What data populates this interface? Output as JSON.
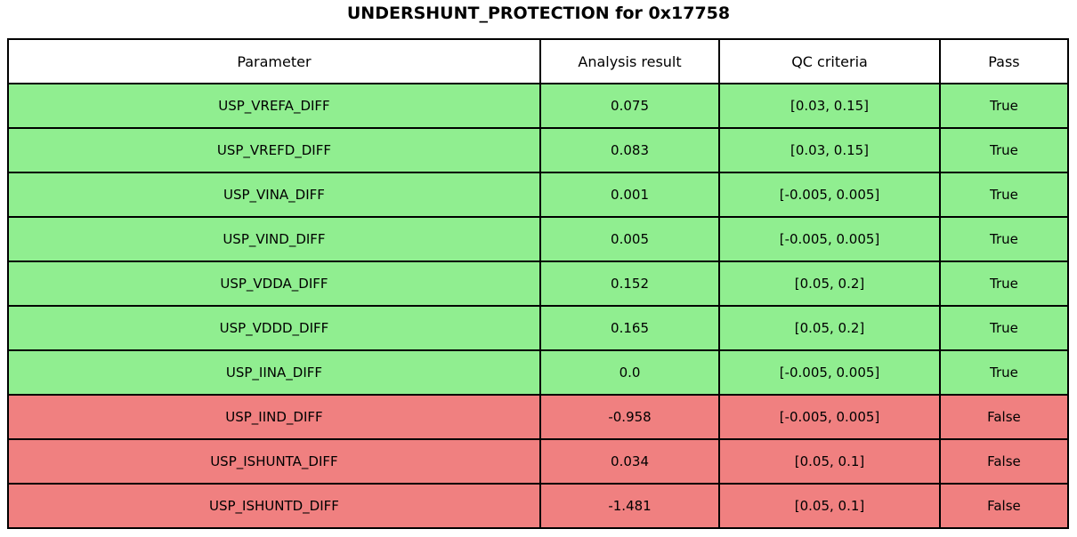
{
  "title": "UNDERSHUNT_PROTECTION for 0x17758",
  "colors": {
    "pass_row": "#90EE90",
    "fail_row": "#F08080",
    "header_bg": "#FFFFFF",
    "border": "#000000",
    "text": "#000000"
  },
  "table": {
    "columns": [
      "Parameter",
      "Analysis result",
      "QC criteria",
      "Pass"
    ],
    "rows": [
      {
        "parameter": "USP_VREFA_DIFF",
        "result": "0.075",
        "criteria": "[0.03, 0.15]",
        "pass": "True",
        "status": "pass"
      },
      {
        "parameter": "USP_VREFD_DIFF",
        "result": "0.083",
        "criteria": "[0.03, 0.15]",
        "pass": "True",
        "status": "pass"
      },
      {
        "parameter": "USP_VINA_DIFF",
        "result": "0.001",
        "criteria": "[-0.005, 0.005]",
        "pass": "True",
        "status": "pass"
      },
      {
        "parameter": "USP_VIND_DIFF",
        "result": "0.005",
        "criteria": "[-0.005, 0.005]",
        "pass": "True",
        "status": "pass"
      },
      {
        "parameter": "USP_VDDA_DIFF",
        "result": "0.152",
        "criteria": "[0.05, 0.2]",
        "pass": "True",
        "status": "pass"
      },
      {
        "parameter": "USP_VDDD_DIFF",
        "result": "0.165",
        "criteria": "[0.05, 0.2]",
        "pass": "True",
        "status": "pass"
      },
      {
        "parameter": "USP_IINA_DIFF",
        "result": "0.0",
        "criteria": "[-0.005, 0.005]",
        "pass": "True",
        "status": "pass"
      },
      {
        "parameter": "USP_IIND_DIFF",
        "result": "-0.958",
        "criteria": "[-0.005, 0.005]",
        "pass": "False",
        "status": "fail"
      },
      {
        "parameter": "USP_ISHUNTA_DIFF",
        "result": "0.034",
        "criteria": "[0.05, 0.1]",
        "pass": "False",
        "status": "fail"
      },
      {
        "parameter": "USP_ISHUNTD_DIFF",
        "result": "-1.481",
        "criteria": "[0.05, 0.1]",
        "pass": "False",
        "status": "fail"
      }
    ]
  },
  "chart_data": {
    "type": "table",
    "title": "UNDERSHUNT_PROTECTION for 0x17758",
    "columns": [
      "Parameter",
      "Analysis result",
      "QC criteria",
      "Pass"
    ],
    "rows": [
      [
        "USP_VREFA_DIFF",
        0.075,
        "[0.03, 0.15]",
        true
      ],
      [
        "USP_VREFD_DIFF",
        0.083,
        "[0.03, 0.15]",
        true
      ],
      [
        "USP_VINA_DIFF",
        0.001,
        "[-0.005, 0.005]",
        true
      ],
      [
        "USP_VIND_DIFF",
        0.005,
        "[-0.005, 0.005]",
        true
      ],
      [
        "USP_VDDA_DIFF",
        0.152,
        "[0.05, 0.2]",
        true
      ],
      [
        "USP_VDDD_DIFF",
        0.165,
        "[0.05, 0.2]",
        true
      ],
      [
        "USP_IINA_DIFF",
        0.0,
        "[-0.005, 0.005]",
        true
      ],
      [
        "USP_IIND_DIFF",
        -0.958,
        "[-0.005, 0.005]",
        false
      ],
      [
        "USP_ISHUNTA_DIFF",
        0.034,
        "[0.05, 0.1]",
        false
      ],
      [
        "USP_ISHUNTD_DIFF",
        -1.481,
        "[0.05, 0.1]",
        false
      ]
    ],
    "layout": {
      "row_color_pass": "#90EE90",
      "row_color_fail": "#F08080",
      "header_bg": "#FFFFFF"
    }
  }
}
